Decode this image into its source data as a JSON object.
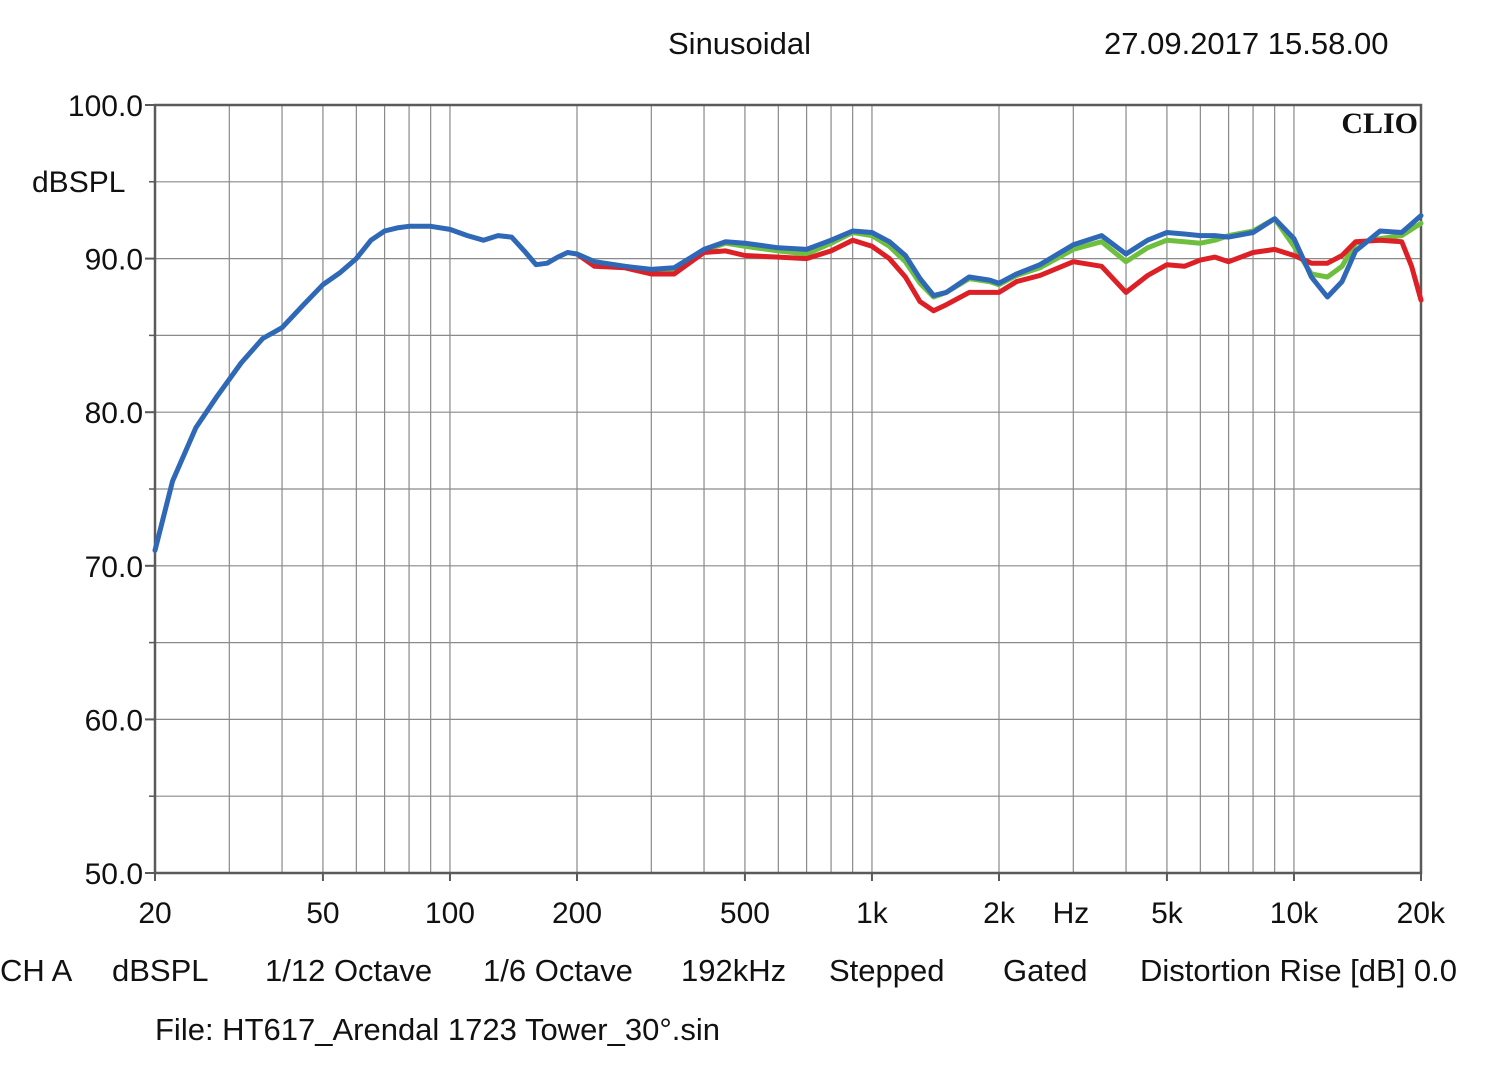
{
  "header": {
    "mode": "Sinusoidal",
    "datetime": "27.09.2017 15.58.00"
  },
  "chart_data": {
    "type": "line",
    "title": "Sinusoidal",
    "xscale": "log",
    "xlim": [
      20,
      20000
    ],
    "ylim": [
      50,
      100
    ],
    "ylabel": "dBSPL",
    "xlabel": "Hz",
    "brand": "CLIO",
    "y_ticks": [
      {
        "value": 100,
        "label": "100.0"
      },
      {
        "value": 90,
        "label": "90.0"
      },
      {
        "value": 80,
        "label": "80.0"
      },
      {
        "value": 70,
        "label": "70.0"
      },
      {
        "value": 60,
        "label": "60.0"
      },
      {
        "value": 50,
        "label": "50.0"
      }
    ],
    "x_ticks": [
      {
        "value": 20,
        "label": "20"
      },
      {
        "value": 50,
        "label": "50"
      },
      {
        "value": 100,
        "label": "100"
      },
      {
        "value": 200,
        "label": "200"
      },
      {
        "value": 500,
        "label": "500"
      },
      {
        "value": 1000,
        "label": "1k"
      },
      {
        "value": 2000,
        "label": "2k"
      },
      {
        "value": 5000,
        "label": "5k"
      },
      {
        "value": 10000,
        "label": "10k"
      },
      {
        "value": 20000,
        "label": "20k"
      }
    ],
    "grid": true,
    "series": [
      {
        "name": "green",
        "color": "#6fbf3f",
        "x": [
          200,
          220,
          260,
          300,
          340,
          400,
          450,
          500,
          600,
          700,
          800,
          900,
          1000,
          1100,
          1200,
          1300,
          1400,
          1500,
          1700,
          1900,
          2000,
          2200,
          2500,
          3000,
          3500,
          4000,
          4500,
          5000,
          5500,
          6000,
          6500,
          7000,
          8000,
          9000,
          10000,
          11000,
          12000,
          13000,
          14000,
          16000,
          18000,
          20000
        ],
        "y": [
          90.3,
          89.8,
          89.5,
          89.2,
          89.3,
          90.5,
          91.0,
          90.8,
          90.5,
          90.3,
          91.0,
          91.7,
          91.5,
          90.8,
          89.8,
          88.4,
          87.5,
          87.8,
          88.7,
          88.5,
          88.3,
          88.9,
          89.4,
          90.6,
          91.1,
          89.8,
          90.7,
          91.2,
          91.1,
          91.0,
          91.2,
          91.5,
          91.8,
          92.6,
          90.8,
          89.0,
          88.8,
          89.5,
          91.0,
          91.3,
          91.5,
          92.3
        ]
      },
      {
        "name": "red",
        "color": "#dd1f26",
        "x": [
          200,
          220,
          260,
          300,
          340,
          400,
          450,
          500,
          600,
          700,
          800,
          900,
          1000,
          1100,
          1200,
          1300,
          1400,
          1500,
          1700,
          1900,
          2000,
          2200,
          2500,
          3000,
          3500,
          4000,
          4500,
          5000,
          5500,
          6000,
          6500,
          7000,
          8000,
          9000,
          10000,
          11000,
          12000,
          13000,
          14000,
          16000,
          18000,
          19000,
          20000
        ],
        "y": [
          90.3,
          89.5,
          89.4,
          89.0,
          89.0,
          90.4,
          90.5,
          90.2,
          90.1,
          90.0,
          90.5,
          91.2,
          90.8,
          90.0,
          88.8,
          87.2,
          86.6,
          87.0,
          87.8,
          87.8,
          87.8,
          88.5,
          88.9,
          89.8,
          89.5,
          87.8,
          88.9,
          89.6,
          89.5,
          89.9,
          90.1,
          89.8,
          90.4,
          90.6,
          90.2,
          89.7,
          89.7,
          90.2,
          91.1,
          91.2,
          91.1,
          89.5,
          87.3
        ]
      },
      {
        "name": "blue",
        "color": "#2f68b7",
        "x": [
          20,
          22,
          25,
          28,
          32,
          36,
          40,
          45,
          50,
          55,
          60,
          65,
          70,
          75,
          80,
          90,
          100,
          110,
          120,
          130,
          140,
          150,
          160,
          170,
          180,
          190,
          200,
          220,
          260,
          300,
          340,
          400,
          450,
          500,
          600,
          700,
          800,
          900,
          1000,
          1100,
          1200,
          1300,
          1400,
          1500,
          1700,
          1900,
          2000,
          2200,
          2500,
          3000,
          3500,
          4000,
          4500,
          5000,
          5500,
          6000,
          6500,
          7000,
          8000,
          9000,
          10000,
          11000,
          12000,
          13000,
          14000,
          16000,
          18000,
          20000
        ],
        "y": [
          71.0,
          75.5,
          79.0,
          81.0,
          83.2,
          84.8,
          85.5,
          87.0,
          88.3,
          89.1,
          90.0,
          91.2,
          91.8,
          92.0,
          92.1,
          92.1,
          91.9,
          91.5,
          91.2,
          91.5,
          91.4,
          90.5,
          89.6,
          89.7,
          90.1,
          90.4,
          90.3,
          89.8,
          89.5,
          89.3,
          89.4,
          90.6,
          91.1,
          91.0,
          90.7,
          90.6,
          91.2,
          91.8,
          91.7,
          91.1,
          90.2,
          88.7,
          87.6,
          87.8,
          88.8,
          88.6,
          88.4,
          89.0,
          89.6,
          90.9,
          91.5,
          90.3,
          91.2,
          91.7,
          91.6,
          91.5,
          91.5,
          91.4,
          91.7,
          92.6,
          91.3,
          88.8,
          87.5,
          88.5,
          90.5,
          91.8,
          91.7,
          92.8
        ]
      }
    ]
  },
  "info": {
    "channel": "CH A",
    "unit": "dBSPL",
    "resolution": "1/12 Octave",
    "smoothing": "1/6 Octave",
    "sample_rate": "192kHz",
    "sweep": "Stepped",
    "window": "Gated",
    "distortion": "Distortion Rise [dB] 0.0"
  },
  "file": "File: HT617_Arendal 1723 Tower_30°.sin"
}
